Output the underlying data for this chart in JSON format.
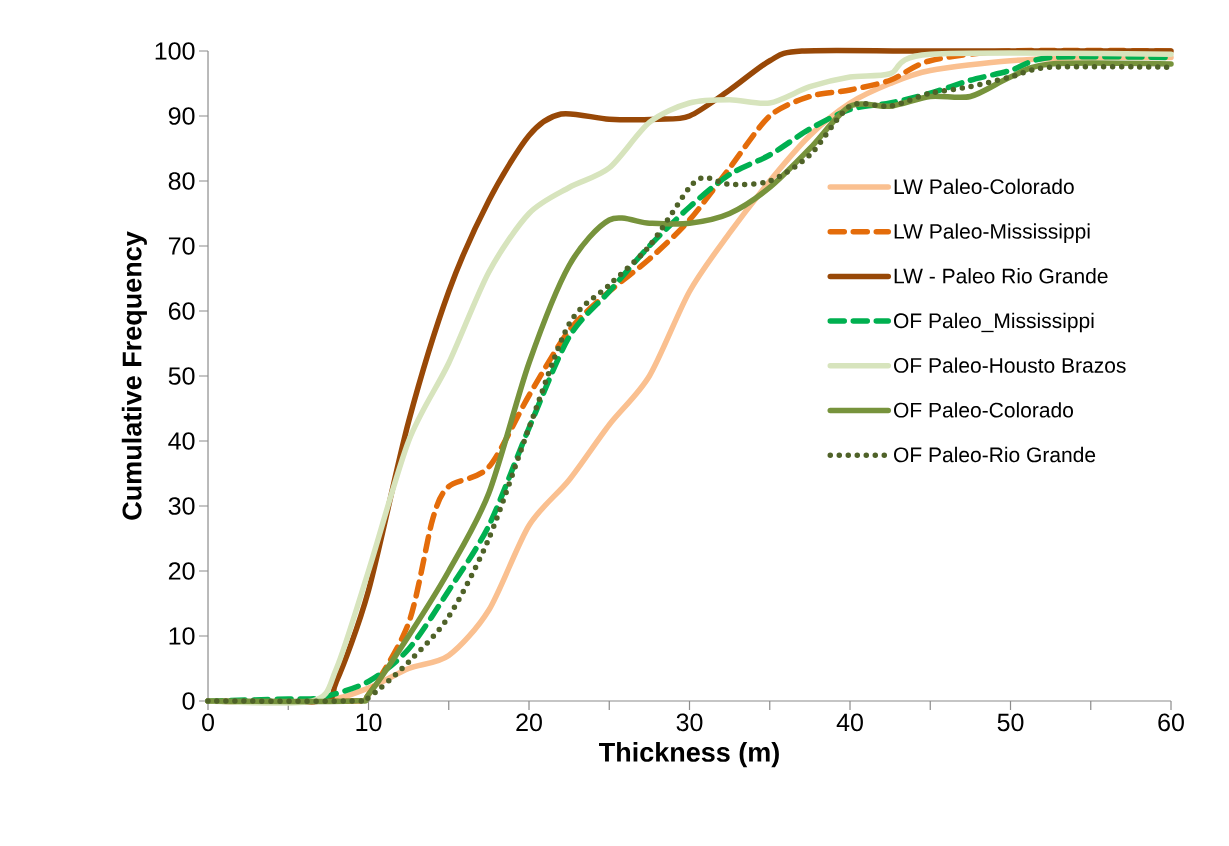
{
  "chart_data": {
    "type": "line",
    "xlabel": "Thickness (m)",
    "ylabel": "Cumulative Frequency",
    "xlim": [
      0,
      60
    ],
    "ylim": [
      0,
      100
    ],
    "xticks": [
      0,
      {
        "value": 5,
        "label": null
      },
      10,
      {
        "value": 15,
        "label": null
      },
      20,
      {
        "value": 25,
        "label": null
      },
      30,
      {
        "value": 35,
        "label": null
      },
      40,
      {
        "value": 45,
        "label": null
      },
      50,
      {
        "value": 55,
        "label": null
      },
      60
    ],
    "yticks": [
      0,
      10,
      20,
      30,
      40,
      50,
      60,
      70,
      80,
      90,
      100
    ],
    "grid": false,
    "legend": "right",
    "series": [
      {
        "name": "LW  Paleo-Colorado",
        "color": "#fac090",
        "line_style": "solid",
        "x": [
          0,
          7,
          10,
          12.5,
          15,
          17.5,
          20,
          22.5,
          25,
          27.5,
          30,
          32.5,
          35,
          37.5,
          40,
          42.5,
          45,
          50,
          55,
          60
        ],
        "values": [
          0,
          0,
          2,
          5,
          7,
          14,
          27,
          34,
          42.5,
          50,
          63,
          72,
          80,
          87,
          92,
          95,
          97,
          98.5,
          99,
          99
        ]
      },
      {
        "name": "LW Paleo-Mississippi",
        "color": "#e46c0a",
        "line_style": "dashed",
        "x": [
          0,
          9,
          10,
          12.5,
          14,
          15,
          17.5,
          20,
          22.5,
          25,
          27.5,
          30,
          32.5,
          35,
          37.5,
          40,
          42.5,
          45,
          50,
          60
        ],
        "values": [
          0,
          0,
          1,
          12,
          28,
          33,
          36,
          47,
          57,
          63,
          68,
          74,
          82,
          90,
          93,
          94,
          95.5,
          98.5,
          100,
          100
        ]
      },
      {
        "name": "LW - Paleo Rio Grande",
        "color": "#984807",
        "line_style": "solid",
        "x": [
          0,
          7,
          8,
          10,
          12.5,
          15,
          17.5,
          20,
          22,
          25,
          28,
          30,
          32.5,
          35,
          37,
          45,
          60
        ],
        "values": [
          0,
          0,
          3,
          17,
          43,
          63,
          77,
          87,
          90.3,
          89.5,
          89.5,
          90,
          94,
          98.5,
          100,
          100,
          100
        ]
      },
      {
        "name": "OF Paleo_Mississippi",
        "color": "#00b050",
        "line_style": "dashed",
        "x": [
          0,
          5,
          7,
          10,
          12.5,
          15,
          17.5,
          20,
          22.5,
          25,
          27.5,
          30,
          32.5,
          35,
          37.5,
          40,
          42.5,
          45,
          47.5,
          50,
          52.5,
          60
        ],
        "values": [
          0,
          0.3,
          0.5,
          3,
          8,
          17,
          27,
          42,
          56,
          63,
          70,
          76,
          81,
          84,
          88,
          91,
          92,
          93.5,
          95.5,
          97,
          99,
          99
        ]
      },
      {
        "name": "OF Paleo-Housto Brazos",
        "color": "#d7e4bd",
        "line_style": "solid",
        "x": [
          0,
          6.5,
          8,
          10,
          12.5,
          15,
          17.5,
          20,
          22.5,
          25,
          27.5,
          30,
          32.5,
          35,
          37.5,
          40,
          42.5,
          45,
          60
        ],
        "values": [
          0,
          0,
          5,
          20,
          40,
          52,
          66,
          75,
          79,
          82,
          89,
          92,
          92.5,
          92,
          94.5,
          96,
          96.5,
          99.5,
          99.5
        ]
      },
      {
        "name": "OF Paleo-Colorado",
        "color": "#77933c",
        "line_style": "solid",
        "x": [
          0,
          9,
          10,
          12.5,
          15,
          17.5,
          20,
          22.5,
          25,
          27.5,
          30,
          32.5,
          35,
          37.5,
          40,
          42.5,
          45,
          47.5,
          50,
          52.5,
          60
        ],
        "values": [
          0,
          0,
          1,
          10,
          20,
          32,
          52,
          67,
          74,
          73.5,
          73.5,
          75,
          79,
          85,
          91.5,
          91.5,
          93,
          93,
          96,
          98,
          98
        ]
      },
      {
        "name": "OF Paleo-Rio Grande",
        "color": "#4f6228",
        "line_style": "dotted",
        "x": [
          0,
          9,
          10,
          12.5,
          15,
          17.5,
          20,
          22.5,
          25,
          27.5,
          30,
          31,
          32.5,
          35,
          37.5,
          40,
          42.5,
          45,
          47.5,
          50,
          52.5,
          60
        ],
        "values": [
          0,
          0,
          0.5,
          6,
          13,
          25,
          42,
          58,
          64,
          70,
          79,
          80.5,
          79.5,
          80,
          84,
          91.5,
          91.5,
          93.5,
          94.5,
          96,
          97.5,
          97.5
        ]
      }
    ]
  }
}
